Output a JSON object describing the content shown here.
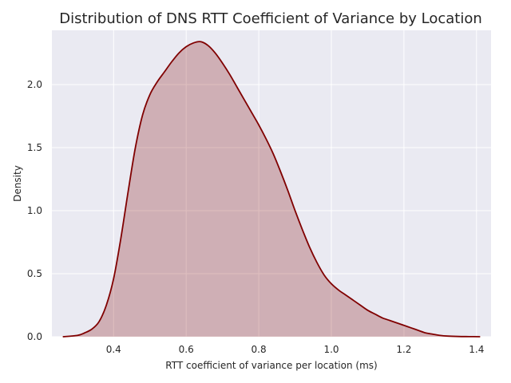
{
  "chart_data": {
    "type": "area",
    "title": "Distribution of DNS RTT Coefficient of Variance by Location",
    "xlabel": "RTT coefficient of variance per location (ms)",
    "ylabel": "Density",
    "xlim": [
      0.23,
      1.44
    ],
    "ylim": [
      0.0,
      2.43
    ],
    "xticks": [
      "0.4",
      "0.6",
      "0.8",
      "1.0",
      "1.2",
      "1.4"
    ],
    "yticks": [
      "0.0",
      "0.5",
      "1.0",
      "1.5",
      "2.0"
    ],
    "grid": true,
    "colors": {
      "line": "#800000",
      "fill": "#800000",
      "background": "#eaeaf2"
    },
    "series": [
      {
        "x": [
          0.26,
          0.3,
          0.32,
          0.34,
          0.36,
          0.38,
          0.4,
          0.42,
          0.44,
          0.46,
          0.48,
          0.5,
          0.52,
          0.54,
          0.56,
          0.58,
          0.6,
          0.62,
          0.64,
          0.66,
          0.68,
          0.7,
          0.72,
          0.74,
          0.76,
          0.78,
          0.8,
          0.82,
          0.84,
          0.86,
          0.88,
          0.9,
          0.92,
          0.94,
          0.96,
          0.98,
          1.0,
          1.02,
          1.04,
          1.06,
          1.08,
          1.1,
          1.12,
          1.14,
          1.16,
          1.18,
          1.2,
          1.22,
          1.24,
          1.26,
          1.28,
          1.3,
          1.32,
          1.35,
          1.38,
          1.41
        ],
        "y": [
          0.0,
          0.01,
          0.03,
          0.06,
          0.12,
          0.25,
          0.46,
          0.78,
          1.15,
          1.5,
          1.76,
          1.92,
          2.02,
          2.1,
          2.18,
          2.25,
          2.3,
          2.33,
          2.34,
          2.31,
          2.25,
          2.17,
          2.08,
          1.98,
          1.88,
          1.78,
          1.68,
          1.57,
          1.45,
          1.31,
          1.16,
          1.0,
          0.85,
          0.71,
          0.59,
          0.49,
          0.42,
          0.37,
          0.33,
          0.29,
          0.25,
          0.21,
          0.18,
          0.15,
          0.13,
          0.11,
          0.09,
          0.07,
          0.05,
          0.03,
          0.02,
          0.01,
          0.005,
          0.002,
          0.001,
          0.0
        ]
      }
    ]
  }
}
